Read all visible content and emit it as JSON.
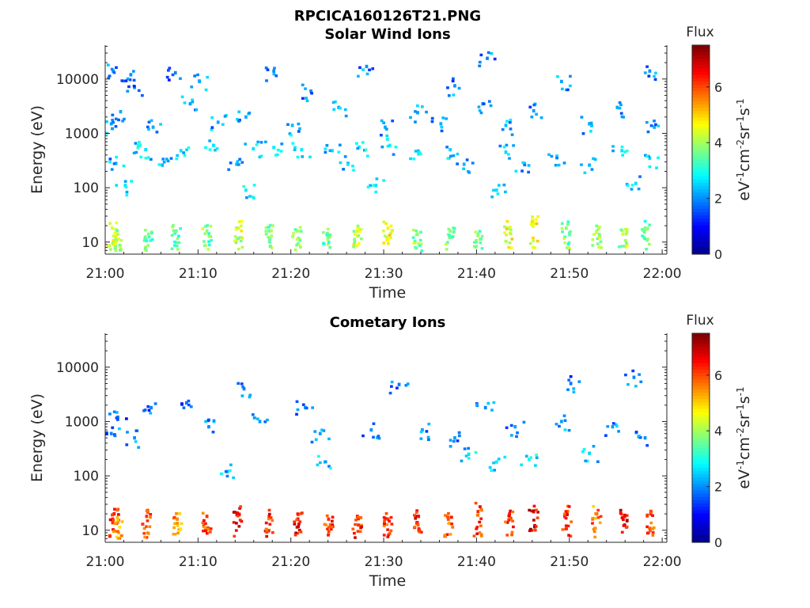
{
  "figure_title": "RPCICA160126T21.PNG",
  "colormap": [
    "#00008f",
    "#0000ff",
    "#0080ff",
    "#00ffff",
    "#80ff80",
    "#ffff00",
    "#ff8000",
    "#ff0000",
    "#800000"
  ],
  "chart_data": [
    {
      "type": "heatmap",
      "title": "Solar Wind Ions",
      "xlabel": "Time",
      "ylabel": "Energy (eV)",
      "x_ticks": [
        "21:00",
        "21:10",
        "21:20",
        "21:30",
        "21:40",
        "21:50",
        "22:00"
      ],
      "x_range_minutes": [
        0,
        60.5
      ],
      "y_ticks": [
        "10",
        "100",
        "1000",
        "10000"
      ],
      "y_tick_values": [
        10,
        100,
        1000,
        10000
      ],
      "y_scale": "log",
      "y_range": [
        6,
        42000
      ],
      "colorbar": {
        "label": "Flux",
        "units": "eV-1cm-2sr-1s-1",
        "ticks": [
          "0",
          "2",
          "4",
          "6"
        ],
        "range": [
          0,
          7.5
        ]
      },
      "pixels": [
        {
          "minute": 0.7,
          "energy": 14000,
          "flux": 2.0
        },
        {
          "minute": 2.6,
          "energy": 12000,
          "flux": 2.0
        },
        {
          "minute": 7.4,
          "energy": 13000,
          "flux": 1.9
        },
        {
          "minute": 18.0,
          "energy": 14000,
          "flux": 2.0
        },
        {
          "minute": 28.0,
          "energy": 17000,
          "flux": 2.0
        },
        {
          "minute": 41.0,
          "energy": 24000,
          "flux": 1.9
        },
        {
          "minute": 58.5,
          "energy": 14000,
          "flux": 2.0
        },
        {
          "minute": 3.0,
          "energy": 7000,
          "flux": 2.0
        },
        {
          "minute": 10.0,
          "energy": 9000,
          "flux": 2.1
        },
        {
          "minute": 22.0,
          "energy": 6000,
          "flux": 2.0
        },
        {
          "minute": 37.5,
          "energy": 7500,
          "flux": 2.0
        },
        {
          "minute": 49.0,
          "energy": 9000,
          "flux": 2.1
        },
        {
          "minute": 1.5,
          "energy": 2500,
          "flux": 2.2
        },
        {
          "minute": 9.0,
          "energy": 3500,
          "flux": 2.1
        },
        {
          "minute": 15.0,
          "energy": 2000,
          "flux": 2.2
        },
        {
          "minute": 25.0,
          "energy": 3000,
          "flux": 2.2
        },
        {
          "minute": 33.5,
          "energy": 2400,
          "flux": 2.1
        },
        {
          "minute": 40.5,
          "energy": 3500,
          "flux": 2.2
        },
        {
          "minute": 46.0,
          "energy": 2600,
          "flux": 2.1
        },
        {
          "minute": 55.0,
          "energy": 3000,
          "flux": 2.2
        },
        {
          "minute": 0.5,
          "energy": 1500,
          "flux": 2.1
        },
        {
          "minute": 5.0,
          "energy": 1300,
          "flux": 2.2
        },
        {
          "minute": 12.0,
          "energy": 1600,
          "flux": 2.2
        },
        {
          "minute": 20.0,
          "energy": 1400,
          "flux": 2.3
        },
        {
          "minute": 30.0,
          "energy": 1300,
          "flux": 2.2
        },
        {
          "minute": 36.0,
          "energy": 1500,
          "flux": 2.2
        },
        {
          "minute": 43.0,
          "energy": 1400,
          "flux": 2.3
        },
        {
          "minute": 52.0,
          "energy": 1500,
          "flux": 2.2
        },
        {
          "minute": 59.0,
          "energy": 1300,
          "flux": 2.2
        },
        {
          "minute": 3.5,
          "energy": 600,
          "flux": 2.7
        },
        {
          "minute": 4.2,
          "energy": 500,
          "flux": 2.6
        },
        {
          "minute": 8.0,
          "energy": 480,
          "flux": 2.6
        },
        {
          "minute": 11.5,
          "energy": 600,
          "flux": 2.7
        },
        {
          "minute": 15.8,
          "energy": 520,
          "flux": 2.6
        },
        {
          "minute": 18.0,
          "energy": 550,
          "flux": 2.7
        },
        {
          "minute": 21.0,
          "energy": 500,
          "flux": 2.7
        },
        {
          "minute": 24.3,
          "energy": 480,
          "flux": 2.6
        },
        {
          "minute": 27.2,
          "energy": 560,
          "flux": 2.7
        },
        {
          "minute": 30.5,
          "energy": 600,
          "flux": 2.7
        },
        {
          "minute": 33.6,
          "energy": 420,
          "flux": 2.6
        },
        {
          "minute": 37.0,
          "energy": 500,
          "flux": 2.5
        },
        {
          "minute": 43.0,
          "energy": 450,
          "flux": 2.5
        },
        {
          "minute": 48.5,
          "energy": 380,
          "flux": 2.5
        },
        {
          "minute": 55.5,
          "energy": 480,
          "flux": 2.6
        },
        {
          "minute": 58.5,
          "energy": 350,
          "flux": 2.5
        },
        {
          "minute": 1.0,
          "energy": 280,
          "flux": 2.3
        },
        {
          "minute": 6.0,
          "energy": 260,
          "flux": 2.3
        },
        {
          "minute": 14.0,
          "energy": 270,
          "flux": 2.3
        },
        {
          "minute": 26.0,
          "energy": 280,
          "flux": 2.3
        },
        {
          "minute": 38.5,
          "energy": 270,
          "flux": 2.3
        },
        {
          "minute": 45.0,
          "energy": 280,
          "flux": 2.4
        },
        {
          "minute": 52.0,
          "energy": 260,
          "flux": 2.3
        },
        {
          "minute": 2.0,
          "energy": 110,
          "flux": 2.6
        },
        {
          "minute": 15.0,
          "energy": 90,
          "flux": 2.7
        },
        {
          "minute": 29.0,
          "energy": 110,
          "flux": 2.6
        },
        {
          "minute": 42.0,
          "energy": 90,
          "flux": 2.6
        },
        {
          "minute": 57.0,
          "energy": 120,
          "flux": 2.6
        },
        {
          "minute": 0.6,
          "energy": 18,
          "flux": 4.4
        },
        {
          "minute": 1.2,
          "energy": 14,
          "flux": 4.2
        },
        {
          "minute": 4.5,
          "energy": 14,
          "flux": 3.8
        },
        {
          "minute": 7.5,
          "energy": 16,
          "flux": 3.6
        },
        {
          "minute": 10.8,
          "energy": 16,
          "flux": 3.8
        },
        {
          "minute": 14.2,
          "energy": 18,
          "flux": 4.4
        },
        {
          "minute": 17.5,
          "energy": 16,
          "flux": 3.8
        },
        {
          "minute": 20.5,
          "energy": 16,
          "flux": 4.0
        },
        {
          "minute": 23.8,
          "energy": 14,
          "flux": 3.8
        },
        {
          "minute": 27.0,
          "energy": 16,
          "flux": 4.4
        },
        {
          "minute": 30.3,
          "energy": 18,
          "flux": 4.8
        },
        {
          "minute": 33.5,
          "energy": 14,
          "flux": 4.0
        },
        {
          "minute": 37.0,
          "energy": 16,
          "flux": 3.8
        },
        {
          "minute": 40.0,
          "energy": 14,
          "flux": 3.7
        },
        {
          "minute": 43.2,
          "energy": 18,
          "flux": 4.6
        },
        {
          "minute": 46.0,
          "energy": 22,
          "flux": 4.6
        },
        {
          "minute": 49.5,
          "energy": 18,
          "flux": 3.8
        },
        {
          "minute": 52.8,
          "energy": 16,
          "flux": 4.0
        },
        {
          "minute": 55.6,
          "energy": 14,
          "flux": 4.2
        },
        {
          "minute": 58.0,
          "energy": 18,
          "flux": 3.6
        }
      ]
    },
    {
      "type": "heatmap",
      "title": "Cometary Ions",
      "xlabel": "Time",
      "ylabel": "Energy (eV)",
      "x_ticks": [
        "21:00",
        "21:10",
        "21:20",
        "21:30",
        "21:40",
        "21:50",
        "22:00"
      ],
      "x_range_minutes": [
        0,
        60.5
      ],
      "y_ticks": [
        "10",
        "100",
        "1000",
        "10000"
      ],
      "y_tick_values": [
        10,
        100,
        1000,
        10000
      ],
      "y_scale": "log",
      "y_range": [
        6,
        42000
      ],
      "colorbar": {
        "label": "Flux",
        "units": "eV-1cm-2sr-1s-1",
        "ticks": [
          "0",
          "2",
          "4",
          "6"
        ],
        "range": [
          0,
          7.5
        ]
      },
      "pixels": [
        {
          "minute": 1.2,
          "energy": 1200,
          "flux": 1.8
        },
        {
          "minute": 0.5,
          "energy": 600,
          "flux": 1.9
        },
        {
          "minute": 4.8,
          "energy": 1800,
          "flux": 1.9
        },
        {
          "minute": 8.6,
          "energy": 2200,
          "flux": 1.8
        },
        {
          "minute": 14.8,
          "energy": 4000,
          "flux": 1.9
        },
        {
          "minute": 21.4,
          "energy": 1800,
          "flux": 2.0
        },
        {
          "minute": 31.5,
          "energy": 4800,
          "flux": 1.8
        },
        {
          "minute": 40.8,
          "energy": 1800,
          "flux": 1.9
        },
        {
          "minute": 50.0,
          "energy": 5000,
          "flux": 1.8
        },
        {
          "minute": 56.8,
          "energy": 6500,
          "flux": 1.9
        },
        {
          "minute": 3.0,
          "energy": 500,
          "flux": 2.0
        },
        {
          "minute": 11.0,
          "energy": 800,
          "flux": 2.0
        },
        {
          "minute": 16.5,
          "energy": 1000,
          "flux": 2.1
        },
        {
          "minute": 23.0,
          "energy": 600,
          "flux": 2.1
        },
        {
          "minute": 28.5,
          "energy": 700,
          "flux": 2.0
        },
        {
          "minute": 34.0,
          "energy": 700,
          "flux": 2.1
        },
        {
          "minute": 37.5,
          "energy": 500,
          "flux": 2.1
        },
        {
          "minute": 44.0,
          "energy": 800,
          "flux": 2.1
        },
        {
          "minute": 49.0,
          "energy": 1000,
          "flux": 2.1
        },
        {
          "minute": 54.5,
          "energy": 800,
          "flux": 2.1
        },
        {
          "minute": 58.0,
          "energy": 500,
          "flux": 2.0
        },
        {
          "minute": 39.0,
          "energy": 250,
          "flux": 2.6
        },
        {
          "minute": 42.0,
          "energy": 180,
          "flux": 2.7
        },
        {
          "minute": 45.5,
          "energy": 200,
          "flux": 2.8
        },
        {
          "minute": 52.0,
          "energy": 260,
          "flux": 2.5
        },
        {
          "minute": 23.5,
          "energy": 180,
          "flux": 2.6
        },
        {
          "minute": 13.0,
          "energy": 120,
          "flux": 2.4
        },
        {
          "minute": 0.8,
          "energy": 20,
          "flux": 6.5
        },
        {
          "minute": 1.2,
          "energy": 14,
          "flux": 5.5
        },
        {
          "minute": 4.3,
          "energy": 18,
          "flux": 6.2
        },
        {
          "minute": 7.6,
          "energy": 16,
          "flux": 5.6
        },
        {
          "minute": 10.8,
          "energy": 18,
          "flux": 6.2
        },
        {
          "minute": 14.1,
          "energy": 20,
          "flux": 6.8
        },
        {
          "minute": 17.5,
          "energy": 18,
          "flux": 6.4
        },
        {
          "minute": 20.6,
          "energy": 16,
          "flux": 6.6
        },
        {
          "minute": 23.9,
          "energy": 16,
          "flux": 6.3
        },
        {
          "minute": 27.0,
          "energy": 18,
          "flux": 6.4
        },
        {
          "minute": 30.3,
          "energy": 16,
          "flux": 6.2
        },
        {
          "minute": 33.6,
          "energy": 18,
          "flux": 6.5
        },
        {
          "minute": 36.8,
          "energy": 16,
          "flux": 6.0
        },
        {
          "minute": 40.0,
          "energy": 22,
          "flux": 6.3
        },
        {
          "minute": 43.4,
          "energy": 20,
          "flux": 6.4
        },
        {
          "minute": 46.0,
          "energy": 22,
          "flux": 6.8
        },
        {
          "minute": 49.6,
          "energy": 20,
          "flux": 6.5
        },
        {
          "minute": 52.8,
          "energy": 20,
          "flux": 5.8
        },
        {
          "minute": 55.8,
          "energy": 18,
          "flux": 6.8
        },
        {
          "minute": 58.6,
          "energy": 20,
          "flux": 6.2
        }
      ]
    }
  ]
}
